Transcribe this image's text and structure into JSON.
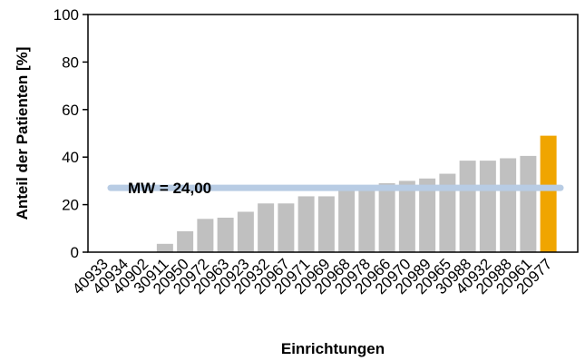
{
  "chart_data": {
    "type": "bar",
    "xlabel": "Einrichtungen",
    "ylabel": "Anteil der Patienten [%]",
    "ylim": [
      0,
      100
    ],
    "yticks": [
      0,
      20,
      40,
      60,
      80,
      100
    ],
    "grid": false,
    "categories": [
      "40933",
      "40934",
      "40902",
      "30911",
      "20950",
      "20972",
      "20963",
      "20923",
      "20932",
      "20967",
      "20971",
      "20969",
      "20968",
      "20978",
      "20966",
      "20970",
      "20989",
      "20965",
      "30988",
      "40932",
      "20988",
      "20961",
      "20977"
    ],
    "values": [
      0,
      0,
      0,
      3.5,
      8.8,
      14,
      14.5,
      17,
      20.5,
      20.5,
      23.5,
      23.5,
      26,
      28,
      29,
      30,
      31,
      33,
      38.5,
      38.5,
      39.5,
      40.5,
      49
    ],
    "highlight_index": 22,
    "colors": {
      "bar": "#c0c0c0",
      "highlight": "#f0a500",
      "mean_line": "#b8cce4"
    },
    "mean": {
      "value": 24.0,
      "label": "MW = 24,00"
    }
  }
}
